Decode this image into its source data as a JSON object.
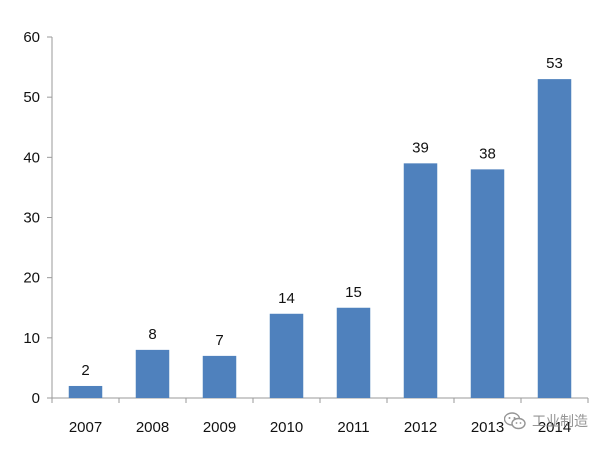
{
  "chart_data": {
    "type": "bar",
    "categories": [
      "2007",
      "2008",
      "2009",
      "2010",
      "2011",
      "2012",
      "2013",
      "2014"
    ],
    "values": [
      2,
      8,
      7,
      14,
      15,
      39,
      38,
      53
    ],
    "title": "",
    "xlabel": "",
    "ylabel": "",
    "ylim": [
      0,
      60
    ],
    "yticks": [
      0,
      10,
      20,
      30,
      40,
      50,
      60
    ],
    "grid": false,
    "legend": "none",
    "bar_color": "#4f81bd",
    "data_labels": true
  },
  "watermark": {
    "text": "工业制造",
    "icon": "wechat-logo-icon"
  }
}
